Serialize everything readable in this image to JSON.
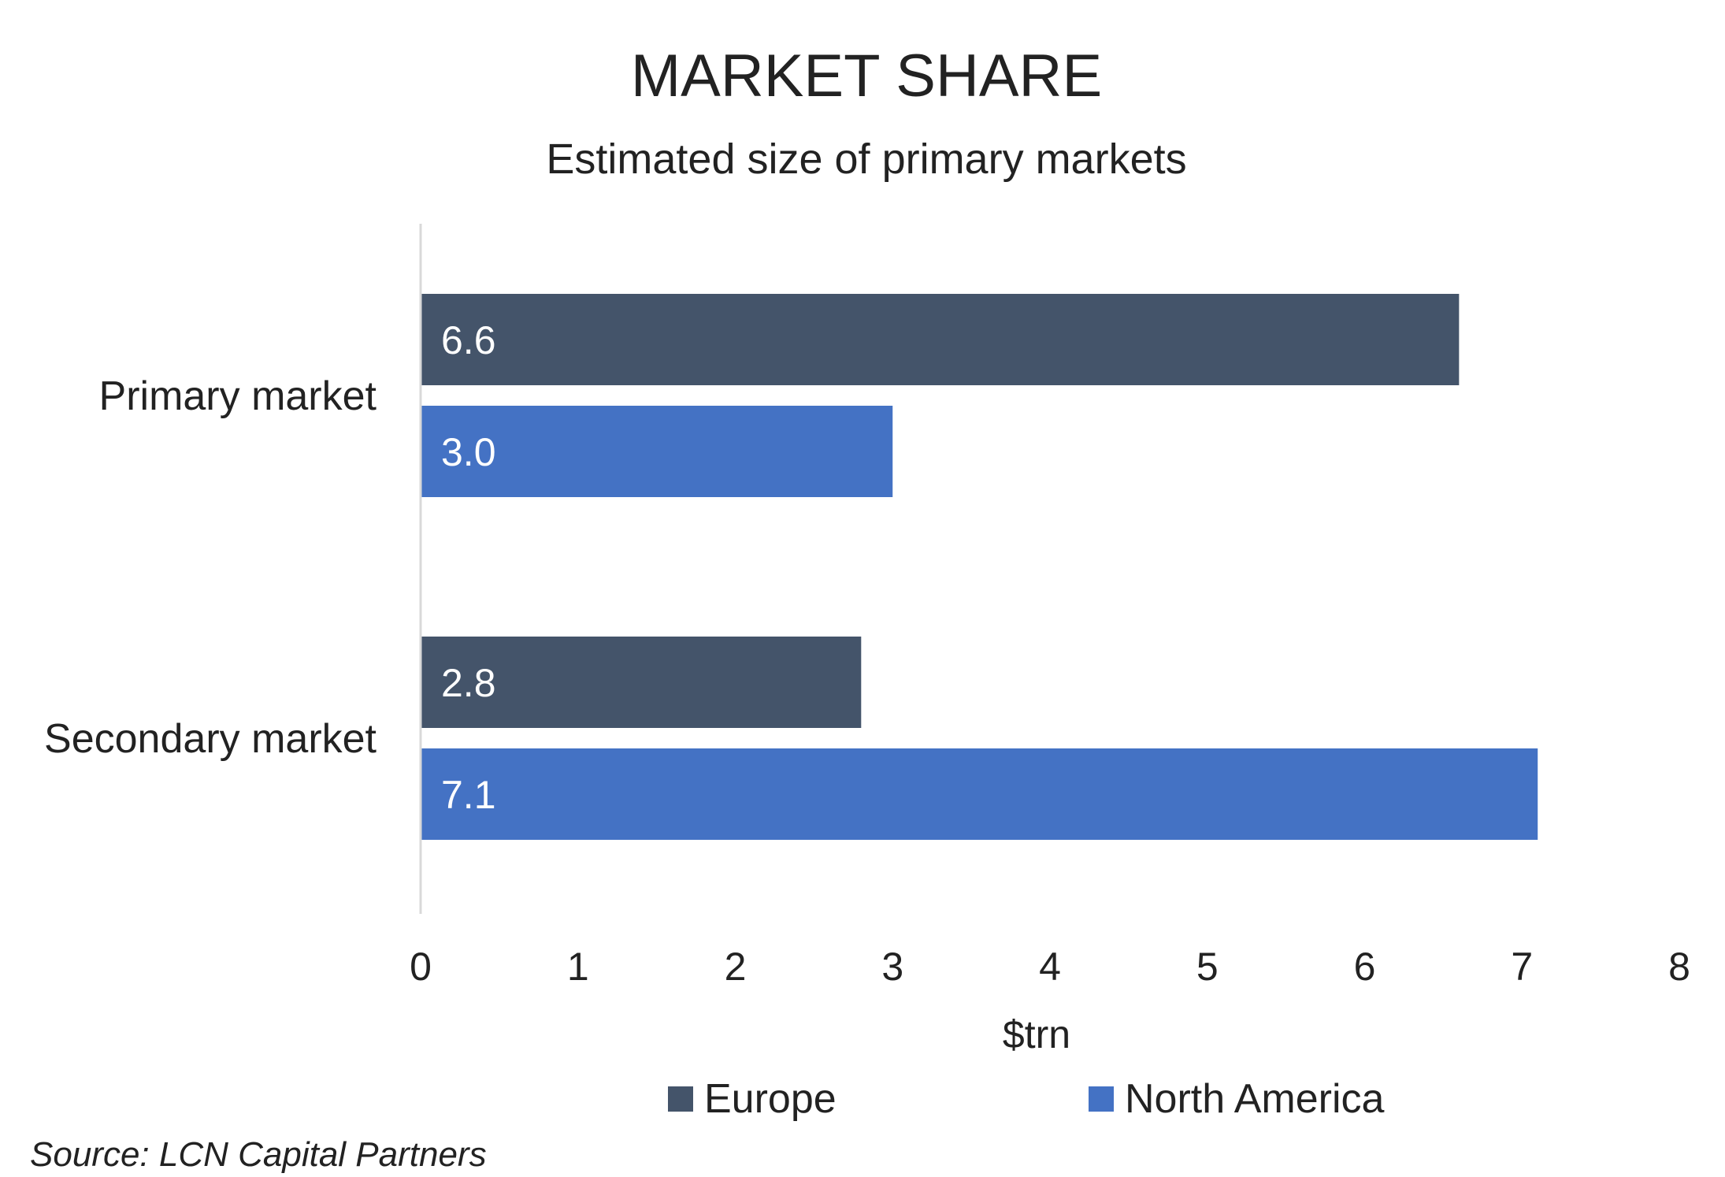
{
  "chart_data": {
    "type": "bar",
    "orientation": "horizontal",
    "title": "MARKET SHARE",
    "subtitle": "Estimated size of primary markets",
    "categories": [
      "Primary market",
      "Secondary market"
    ],
    "series": [
      {
        "name": "Europe",
        "values": [
          6.6,
          2.8
        ],
        "labels": [
          "6.6",
          "2.8"
        ],
        "color": "#44546A"
      },
      {
        "name": "North America",
        "values": [
          3.0,
          7.1
        ],
        "labels": [
          "3.0",
          "7.1"
        ],
        "color": "#4472C4"
      }
    ],
    "xlabel": "$trn",
    "ylabel": "",
    "xlim": [
      0,
      8
    ],
    "xticks": [
      "0",
      "1",
      "2",
      "3",
      "4",
      "5",
      "6",
      "7",
      "8"
    ],
    "grid": false,
    "legend": "bottom",
    "source": "Source: LCN Capital Partners"
  }
}
